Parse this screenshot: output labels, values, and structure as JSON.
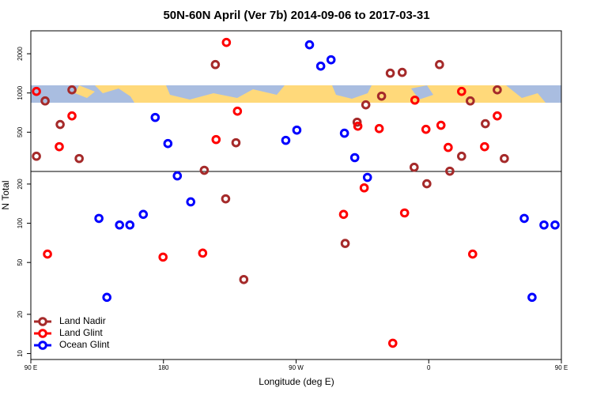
{
  "chart_data": {
    "type": "scatter",
    "title": "50N-60N April (Ver 7b)   2014-09-06 to 2017-03-31",
    "x_label": "Longitude (deg E)",
    "y_label": "N Total",
    "xlim": [
      90,
      450
    ],
    "xticks": [
      {
        "value": 90,
        "label": "90 E"
      },
      180,
      {
        "value": 270,
        "label": "90 W"
      },
      {
        "value": 360,
        "label": "0"
      },
      {
        "value": 450,
        "label": "90 E"
      }
    ],
    "ylim": [
      9,
      3000
    ],
    "yticks": [
      10,
      20,
      50,
      100,
      200,
      500,
      1000,
      2000
    ],
    "log_y": true,
    "reference_line": 250,
    "legend": "bottom-left",
    "grid": false,
    "series": [
      {
        "name": "Land Nadir",
        "color": "#a52a2a",
        "x": [
          93.8,
          99.7,
          109.9,
          117.9,
          122.8,
          207.7,
          215.2,
          222.2,
          229.2,
          234.5,
          311.4,
          303.3,
          317.3,
          328.0,
          333.9,
          342.0,
          350.1,
          358.7,
          367.3,
          374.3,
          382.3,
          388.2,
          398.4,
          406.5,
          411.3
        ],
        "values": [
          327,
          869,
          573,
          1057,
          314,
          255,
          1652,
          154,
          415,
          37,
          597,
          70,
          811,
          946,
          1419,
          1439,
          269,
          201,
          1652,
          251,
          327,
          869,
          581,
          1057,
          314
        ]
      },
      {
        "name": "Land Glint",
        "color": "#ff0000",
        "x": [
          93.8,
          101.3,
          109.3,
          117.9,
          179.7,
          206.6,
          215.7,
          222.7,
          230.2,
          302.2,
          311.9,
          316.2,
          326.4,
          335.6,
          343.6,
          350.6,
          358.1,
          368.3,
          373.2,
          382.3,
          389.8,
          397.9,
          406.5
        ],
        "values": [
          1028,
          58,
          387,
          667,
          55,
          59,
          439,
          2443,
          725,
          117,
          556,
          187,
          533,
          12,
          120,
          881,
          526,
          565,
          382,
          1028,
          58,
          387,
          667
        ]
      },
      {
        "name": "Ocean Glint",
        "color": "#0000ff",
        "x": [
          136.2,
          141.6,
          150.2,
          157.2,
          166.3,
          174.4,
          183.0,
          189.4,
          198.5,
          263.0,
          270.5,
          279.1,
          286.7,
          293.7,
          302.8,
          309.8,
          318.4,
          424.8,
          430.1,
          438.2,
          445.7
        ],
        "values": [
          109,
          27,
          97,
          97,
          117,
          649,
          409,
          231,
          146,
          433,
          519,
          2344,
          1607,
          1798,
          491,
          319,
          225,
          109,
          27,
          97,
          97
        ]
      }
    ]
  }
}
